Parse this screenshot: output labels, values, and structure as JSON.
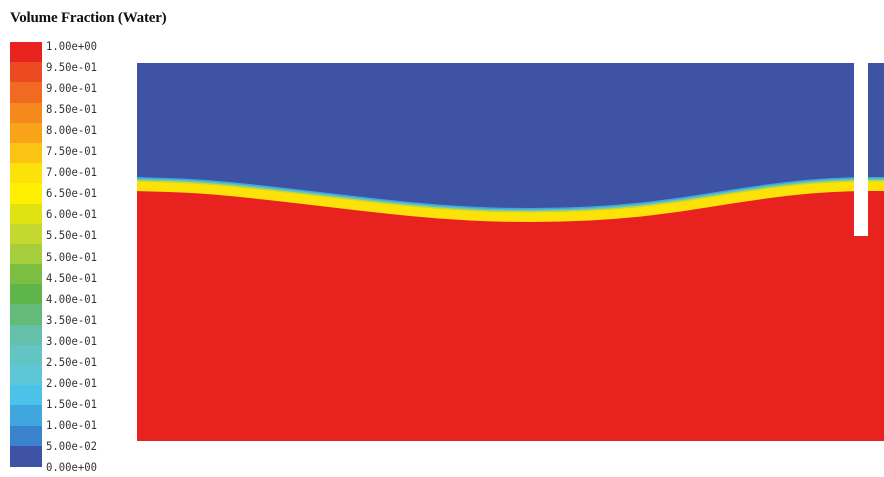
{
  "chart_data": {
    "type": "heatmap",
    "title": "Volume Fraction (Water)",
    "colorbar": {
      "min": 0.0,
      "max": 1.0,
      "tick_labels": [
        "1.00e+00",
        "9.50e-01",
        "9.00e-01",
        "8.50e-01",
        "8.00e-01",
        "7.50e-01",
        "7.00e-01",
        "6.50e-01",
        "6.00e-01",
        "5.50e-01",
        "5.00e-01",
        "4.50e-01",
        "4.00e-01",
        "3.50e-01",
        "3.00e-01",
        "2.50e-01",
        "2.00e-01",
        "1.50e-01",
        "1.00e-01",
        "5.00e-02",
        "0.00e+00"
      ],
      "colors_top_to_bottom": [
        "#e8221f",
        "#ec4a20",
        "#f06a21",
        "#f5891c",
        "#f8a318",
        "#fbc312",
        "#fde20a",
        "#fff000",
        "#dfe312",
        "#c4d830",
        "#a6cd3c",
        "#7bbe42",
        "#5eb64a",
        "#64bb79",
        "#64c0a8",
        "#63c4c4",
        "#5dc7d8",
        "#4bc2e8",
        "#3fa7de",
        "#3a82cb",
        "#3f53a5"
      ]
    },
    "field": {
      "water_value": 1.0,
      "air_value": 0.0,
      "water_color": "#e8221f",
      "air_color": "#3f53a5",
      "interface_colors": [
        "#fde20a",
        "#c4d830",
        "#63c4c4",
        "#3fa7de"
      ],
      "obstacle_color": "#ffffff"
    }
  }
}
